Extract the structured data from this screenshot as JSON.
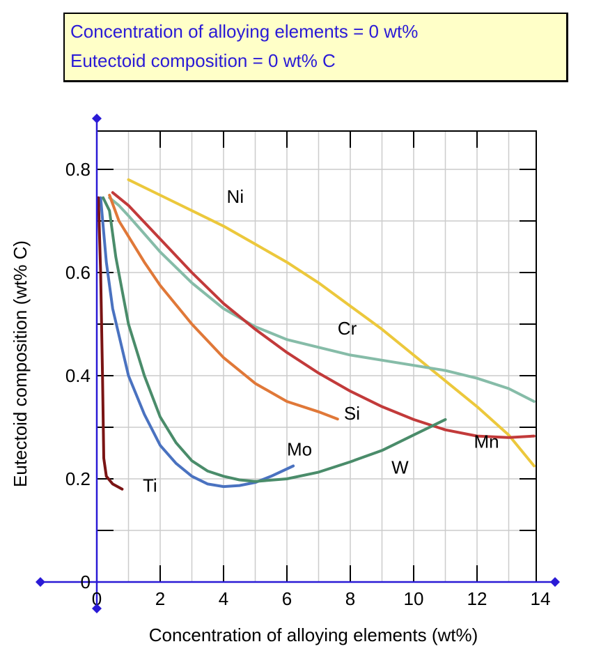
{
  "readout": {
    "x_label": "Concentration of alloying elements",
    "x_value": 0,
    "x_unit": "wt%",
    "y_label": "Eutectoid composition",
    "y_value": 0,
    "y_unit": "wt% C"
  },
  "chart_data": {
    "type": "line",
    "title": "",
    "xlabel": "Concentration of alloying elements (wt%)",
    "ylabel": "Eutectoid composition (wt% C)",
    "xlim": [
      0,
      14
    ],
    "ylim": [
      0,
      0.85
    ],
    "xticks": [
      0,
      2,
      4,
      6,
      8,
      10,
      12,
      14
    ],
    "yticks": [
      0,
      0.2,
      0.4,
      0.6,
      0.8
    ],
    "grid": true,
    "colors": {
      "axis": "#2a1ad6",
      "marker": "#2a1ad6",
      "box_bg": "#ffffc8",
      "grid": "#cccccc"
    },
    "series": [
      {
        "name": "Ni",
        "color": "#ecc83c",
        "label_at": [
          4.1,
          0.735
        ],
        "points": [
          [
            1.0,
            0.78
          ],
          [
            2.0,
            0.75
          ],
          [
            3.0,
            0.72
          ],
          [
            4.0,
            0.69
          ],
          [
            5.0,
            0.655
          ],
          [
            6.0,
            0.62
          ],
          [
            7.0,
            0.58
          ],
          [
            8.0,
            0.535
          ],
          [
            9.0,
            0.49
          ],
          [
            10.0,
            0.44
          ],
          [
            11.0,
            0.39
          ],
          [
            12.0,
            0.34
          ],
          [
            13.0,
            0.285
          ],
          [
            13.8,
            0.225
          ]
        ]
      },
      {
        "name": "Cr",
        "color": "#86bca8",
        "label_at": [
          7.6,
          0.48
        ],
        "points": [
          [
            0.4,
            0.745
          ],
          [
            0.7,
            0.73
          ],
          [
            1.0,
            0.71
          ],
          [
            1.5,
            0.675
          ],
          [
            2.0,
            0.64
          ],
          [
            3.0,
            0.58
          ],
          [
            4.0,
            0.53
          ],
          [
            5.0,
            0.495
          ],
          [
            6.0,
            0.47
          ],
          [
            7.0,
            0.455
          ],
          [
            8.0,
            0.44
          ],
          [
            9.0,
            0.43
          ],
          [
            10.0,
            0.42
          ],
          [
            11.0,
            0.41
          ],
          [
            12.0,
            0.395
          ],
          [
            13.0,
            0.375
          ],
          [
            13.8,
            0.35
          ]
        ]
      },
      {
        "name": "Mn",
        "color": "#c23a3a",
        "label_at": [
          11.9,
          0.26
        ],
        "points": [
          [
            0.5,
            0.755
          ],
          [
            1.0,
            0.73
          ],
          [
            2.0,
            0.665
          ],
          [
            3.0,
            0.6
          ],
          [
            4.0,
            0.54
          ],
          [
            5.0,
            0.49
          ],
          [
            6.0,
            0.445
          ],
          [
            7.0,
            0.405
          ],
          [
            8.0,
            0.37
          ],
          [
            9.0,
            0.34
          ],
          [
            10.0,
            0.315
          ],
          [
            11.0,
            0.295
          ],
          [
            12.0,
            0.283
          ],
          [
            13.0,
            0.28
          ],
          [
            13.8,
            0.283
          ]
        ]
      },
      {
        "name": "Si",
        "color": "#e07838",
        "label_at": [
          7.8,
          0.315
        ],
        "points": [
          [
            0.4,
            0.75
          ],
          [
            0.7,
            0.7
          ],
          [
            1.0,
            0.67
          ],
          [
            1.5,
            0.62
          ],
          [
            2.0,
            0.575
          ],
          [
            3.0,
            0.5
          ],
          [
            4.0,
            0.435
          ],
          [
            5.0,
            0.385
          ],
          [
            6.0,
            0.35
          ],
          [
            7.0,
            0.33
          ],
          [
            7.6,
            0.316
          ]
        ]
      },
      {
        "name": "Mo",
        "color": "#4a72c0",
        "label_at": [
          6.0,
          0.245
        ],
        "points": [
          [
            0.12,
            0.745
          ],
          [
            0.3,
            0.62
          ],
          [
            0.5,
            0.53
          ],
          [
            1.0,
            0.4
          ],
          [
            1.5,
            0.325
          ],
          [
            2.0,
            0.265
          ],
          [
            2.5,
            0.23
          ],
          [
            3.0,
            0.205
          ],
          [
            3.5,
            0.19
          ],
          [
            4.0,
            0.185
          ],
          [
            4.5,
            0.187
          ],
          [
            5.0,
            0.193
          ],
          [
            5.5,
            0.205
          ],
          [
            6.2,
            0.225
          ]
        ]
      },
      {
        "name": "W",
        "color": "#4a8c6a",
        "label_at": [
          9.3,
          0.21
        ],
        "points": [
          [
            0.2,
            0.745
          ],
          [
            0.4,
            0.72
          ],
          [
            0.6,
            0.63
          ],
          [
            1.0,
            0.5
          ],
          [
            1.5,
            0.4
          ],
          [
            2.0,
            0.32
          ],
          [
            2.5,
            0.27
          ],
          [
            3.0,
            0.235
          ],
          [
            3.5,
            0.215
          ],
          [
            4.0,
            0.205
          ],
          [
            4.5,
            0.198
          ],
          [
            5.0,
            0.195
          ],
          [
            6.0,
            0.2
          ],
          [
            7.0,
            0.213
          ],
          [
            8.0,
            0.233
          ],
          [
            9.0,
            0.255
          ],
          [
            10.0,
            0.285
          ],
          [
            11.0,
            0.315
          ]
        ]
      },
      {
        "name": "Ti",
        "color": "#7a1414",
        "label_at": [
          1.45,
          0.175
        ],
        "points": [
          [
            0.05,
            0.745
          ],
          [
            0.12,
            0.6
          ],
          [
            0.18,
            0.4
          ],
          [
            0.22,
            0.24
          ],
          [
            0.3,
            0.205
          ],
          [
            0.5,
            0.19
          ],
          [
            0.8,
            0.18
          ]
        ]
      }
    ]
  }
}
